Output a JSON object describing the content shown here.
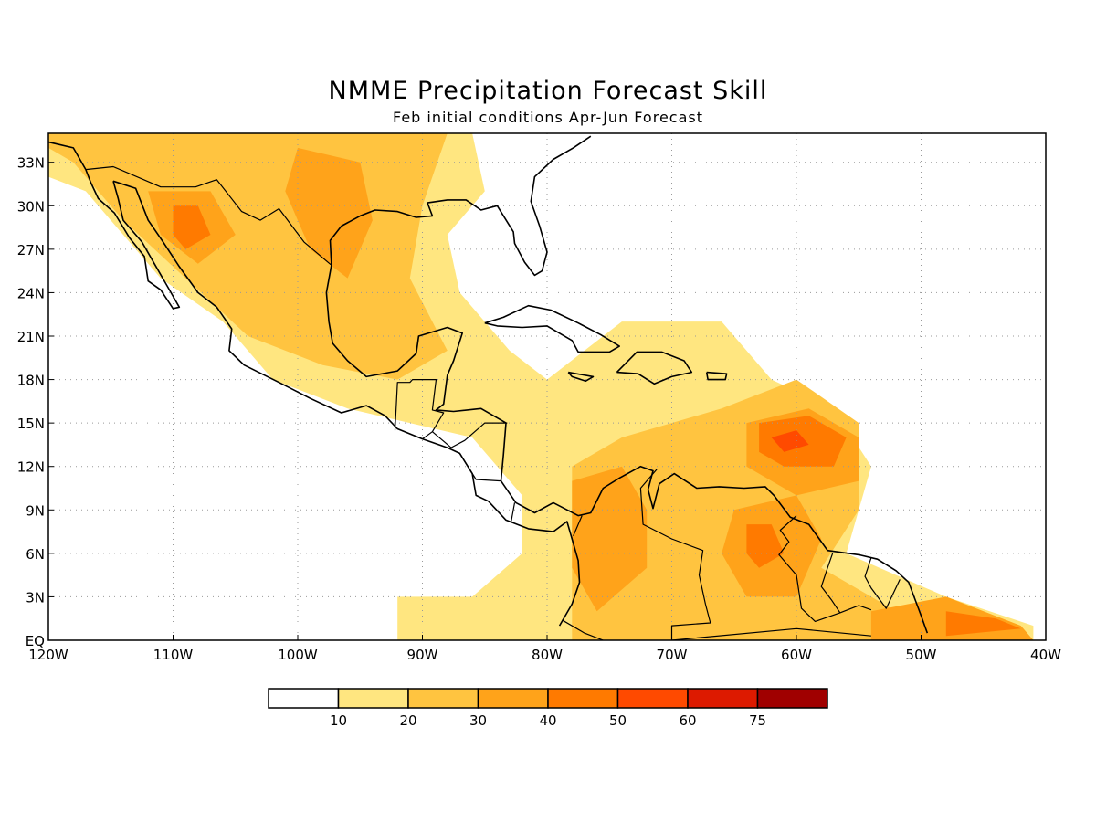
{
  "title": "NMME Precipitation Forecast Skill",
  "subtitle": "Feb initial conditions  Apr-Jun Forecast",
  "map": {
    "lon_range": [
      -120,
      -40
    ],
    "lat_range": [
      0,
      35
    ],
    "lon_ticks": [
      {
        "value": -120,
        "label": "120W"
      },
      {
        "value": -110,
        "label": "110W"
      },
      {
        "value": -100,
        "label": "100W"
      },
      {
        "value": -90,
        "label": "90W"
      },
      {
        "value": -80,
        "label": "80W"
      },
      {
        "value": -70,
        "label": "70W"
      },
      {
        "value": -60,
        "label": "60W"
      },
      {
        "value": -50,
        "label": "50W"
      },
      {
        "value": -40,
        "label": "40W"
      }
    ],
    "lat_ticks": [
      {
        "value": 0,
        "label": "EQ"
      },
      {
        "value": 3,
        "label": "3N"
      },
      {
        "value": 6,
        "label": "6N"
      },
      {
        "value": 9,
        "label": "9N"
      },
      {
        "value": 12,
        "label": "12N"
      },
      {
        "value": 15,
        "label": "15N"
      },
      {
        "value": 18,
        "label": "18N"
      },
      {
        "value": 21,
        "label": "21N"
      },
      {
        "value": 24,
        "label": "24N"
      },
      {
        "value": 27,
        "label": "27N"
      },
      {
        "value": 30,
        "label": "30N"
      },
      {
        "value": 33,
        "label": "33N"
      }
    ],
    "grid": "dotted"
  },
  "legend": {
    "labels": [
      "10",
      "20",
      "30",
      "40",
      "50",
      "60",
      "75"
    ],
    "colors": [
      "#ffffff",
      "#ffe680",
      "#ffc440",
      "#ffa31a",
      "#ff7a00",
      "#ff4a00",
      "#dd1a00",
      "#a00000"
    ]
  },
  "skill_regions": [
    {
      "level": 1,
      "pts": [
        [
          -120,
          35
        ],
        [
          -86,
          35
        ],
        [
          -85,
          31
        ],
        [
          -88,
          28
        ],
        [
          -87,
          24
        ],
        [
          -83,
          20
        ],
        [
          -80,
          18
        ],
        [
          -74,
          22
        ],
        [
          -66,
          22
        ],
        [
          -62,
          18
        ],
        [
          -57,
          16
        ],
        [
          -54,
          12
        ],
        [
          -56,
          6
        ],
        [
          -48,
          3
        ],
        [
          -41,
          1
        ],
        [
          -41,
          0
        ],
        [
          -92,
          0
        ],
        [
          -92,
          3
        ],
        [
          -86,
          3
        ],
        [
          -82,
          6
        ],
        [
          -82,
          10
        ],
        [
          -86,
          14
        ],
        [
          -96,
          16
        ],
        [
          -102,
          18
        ],
        [
          -106,
          22
        ],
        [
          -111,
          25
        ],
        [
          -114,
          28
        ],
        [
          -117,
          31
        ],
        [
          -120,
          32
        ]
      ]
    },
    {
      "level": 2,
      "pts": [
        [
          -120,
          35
        ],
        [
          -88,
          35
        ],
        [
          -90,
          30
        ],
        [
          -91,
          25
        ],
        [
          -88,
          20
        ],
        [
          -92,
          18
        ],
        [
          -98,
          19
        ],
        [
          -104,
          21
        ],
        [
          -109,
          25
        ],
        [
          -114,
          29
        ],
        [
          -118,
          33
        ],
        [
          -120,
          34
        ]
      ]
    },
    {
      "level": 2,
      "pts": [
        [
          -78,
          12
        ],
        [
          -74,
          14
        ],
        [
          -66,
          16
        ],
        [
          -60,
          18
        ],
        [
          -55,
          15
        ],
        [
          -55,
          9
        ],
        [
          -58,
          5
        ],
        [
          -52,
          2
        ],
        [
          -48,
          3
        ],
        [
          -42,
          1
        ],
        [
          -41,
          0
        ],
        [
          -78,
          0
        ]
      ]
    },
    {
      "level": 3,
      "pts": [
        [
          -112,
          31
        ],
        [
          -107,
          31
        ],
        [
          -105,
          28
        ],
        [
          -108,
          26
        ],
        [
          -111,
          28
        ]
      ]
    },
    {
      "level": 3,
      "pts": [
        [
          -100,
          34
        ],
        [
          -95,
          33
        ],
        [
          -94,
          29
        ],
        [
          -96,
          25
        ],
        [
          -99,
          27
        ],
        [
          -101,
          31
        ]
      ]
    },
    {
      "level": 3,
      "pts": [
        [
          -78,
          11
        ],
        [
          -74,
          12
        ],
        [
          -72,
          9
        ],
        [
          -72,
          5
        ],
        [
          -76,
          2
        ],
        [
          -78,
          5
        ]
      ]
    },
    {
      "level": 3,
      "pts": [
        [
          -65,
          9
        ],
        [
          -60,
          10
        ],
        [
          -58,
          7
        ],
        [
          -60,
          3
        ],
        [
          -64,
          3
        ],
        [
          -66,
          6
        ]
      ]
    },
    {
      "level": 3,
      "pts": [
        [
          -64,
          15
        ],
        [
          -59,
          16
        ],
        [
          -55,
          14
        ],
        [
          -55,
          11
        ],
        [
          -60,
          10
        ],
        [
          -64,
          12
        ]
      ]
    },
    {
      "level": 3,
      "pts": [
        [
          -54,
          2
        ],
        [
          -48,
          3
        ],
        [
          -42,
          1
        ],
        [
          -41,
          0
        ],
        [
          -54,
          0
        ]
      ]
    },
    {
      "level": 4,
      "pts": [
        [
          -110,
          30
        ],
        [
          -108,
          30
        ],
        [
          -107,
          28
        ],
        [
          -109,
          27
        ],
        [
          -110,
          28
        ]
      ]
    },
    {
      "level": 4,
      "pts": [
        [
          -63,
          15
        ],
        [
          -59,
          15.5
        ],
        [
          -56,
          14
        ],
        [
          -57,
          12
        ],
        [
          -61,
          12
        ],
        [
          -63,
          13
        ]
      ]
    },
    {
      "level": 4,
      "pts": [
        [
          -64,
          8
        ],
        [
          -62,
          8
        ],
        [
          -61,
          6
        ],
        [
          -63,
          5
        ],
        [
          -64,
          6
        ]
      ]
    },
    {
      "level": 4,
      "pts": [
        [
          -48,
          2
        ],
        [
          -44,
          1.5
        ],
        [
          -42,
          0.8
        ],
        [
          -48,
          0.3
        ]
      ]
    },
    {
      "level": 5,
      "pts": [
        [
          -62,
          14
        ],
        [
          -60,
          14.5
        ],
        [
          -59,
          13.5
        ],
        [
          -61,
          13
        ]
      ]
    }
  ],
  "coastlines": [
    [
      [
        -117,
        32.5
      ],
      [
        -118,
        34
      ],
      [
        -120.5,
        34.5
      ]
    ],
    [
      [
        -114.8,
        31.7
      ],
      [
        -113,
        31.2
      ],
      [
        -112,
        29
      ],
      [
        -110.8,
        27.5
      ],
      [
        -109.5,
        25.8
      ],
      [
        -108,
        24
      ],
      [
        -106.5,
        23
      ],
      [
        -105.3,
        21.5
      ],
      [
        -105.5,
        20
      ],
      [
        -104.3,
        19
      ],
      [
        -101.5,
        17.8
      ],
      [
        -99,
        16.7
      ],
      [
        -96.5,
        15.7
      ],
      [
        -94.5,
        16.2
      ],
      [
        -93,
        15.5
      ],
      [
        -92,
        14.6
      ],
      [
        -90,
        13.9
      ],
      [
        -88,
        13.3
      ],
      [
        -87,
        12.9
      ],
      [
        -86,
        11.5
      ],
      [
        -85.7,
        10
      ],
      [
        -84.7,
        9.6
      ],
      [
        -83.3,
        8.3
      ],
      [
        -81.5,
        7.7
      ],
      [
        -79.5,
        7.5
      ],
      [
        -78.4,
        8.2
      ],
      [
        -78,
        7
      ],
      [
        -77.5,
        5.5
      ],
      [
        -77.4,
        4
      ],
      [
        -78,
        2.5
      ],
      [
        -79,
        1
      ]
    ],
    [
      [
        -114.8,
        31.7
      ],
      [
        -114.4,
        30.5
      ],
      [
        -114,
        29
      ],
      [
        -112.5,
        27.5
      ],
      [
        -111.5,
        26
      ],
      [
        -110.5,
        24.5
      ],
      [
        -109.5,
        23
      ],
      [
        -110,
        22.9
      ],
      [
        -111,
        24.2
      ],
      [
        -112,
        24.8
      ],
      [
        -112.3,
        26.5
      ],
      [
        -113.5,
        27.8
      ],
      [
        -114.7,
        29.5
      ],
      [
        -116,
        30.5
      ],
      [
        -116.6,
        31.6
      ],
      [
        -117,
        32.5
      ]
    ],
    [
      [
        -97.3,
        25.9
      ],
      [
        -97.7,
        24
      ],
      [
        -97.5,
        22
      ],
      [
        -97.2,
        20.5
      ],
      [
        -96,
        19.3
      ],
      [
        -94.5,
        18.2
      ],
      [
        -92,
        18.6
      ],
      [
        -90.5,
        19.8
      ],
      [
        -90.3,
        21
      ],
      [
        -88,
        21.6
      ],
      [
        -86.8,
        21.2
      ],
      [
        -87.5,
        19.3
      ],
      [
        -88,
        18.3
      ],
      [
        -88.3,
        16.3
      ],
      [
        -88.9,
        15.9
      ],
      [
        -87.5,
        15.8
      ],
      [
        -85.3,
        16
      ],
      [
        -83.3,
        15
      ],
      [
        -83.5,
        12.8
      ],
      [
        -83.7,
        11
      ],
      [
        -82.5,
        9.5
      ],
      [
        -81,
        8.8
      ],
      [
        -79.5,
        9.5
      ],
      [
        -77.5,
        8.6
      ],
      [
        -76.5,
        8.8
      ],
      [
        -75.5,
        10.5
      ],
      [
        -74.2,
        11.2
      ],
      [
        -72.5,
        12
      ],
      [
        -71.5,
        11.7
      ],
      [
        -71.9,
        10.4
      ],
      [
        -71.5,
        9.1
      ],
      [
        -71,
        10.8
      ],
      [
        -69.8,
        11.5
      ],
      [
        -68,
        10.5
      ],
      [
        -66.2,
        10.6
      ],
      [
        -64.2,
        10.5
      ],
      [
        -62.5,
        10.6
      ],
      [
        -61.8,
        10
      ],
      [
        -60.5,
        8.5
      ],
      [
        -59,
        8
      ],
      [
        -57.5,
        6.2
      ],
      [
        -55,
        5.9
      ],
      [
        -53.5,
        5.6
      ],
      [
        -52,
        4.8
      ],
      [
        -51,
        4
      ],
      [
        -50,
        1.7
      ],
      [
        -49.5,
        0.5
      ]
    ],
    [
      [
        -97.3,
        25.9
      ],
      [
        -97.4,
        27.6
      ],
      [
        -96.5,
        28.6
      ],
      [
        -95,
        29.3
      ],
      [
        -93.8,
        29.7
      ],
      [
        -92,
        29.6
      ],
      [
        -90.5,
        29.2
      ],
      [
        -89.2,
        29.3
      ],
      [
        -89.6,
        30.2
      ],
      [
        -88,
        30.4
      ],
      [
        -86.5,
        30.4
      ],
      [
        -85.3,
        29.7
      ],
      [
        -84,
        30
      ],
      [
        -82.7,
        28.2
      ],
      [
        -82.6,
        27.4
      ],
      [
        -81.8,
        26.1
      ],
      [
        -81,
        25.2
      ],
      [
        -80.4,
        25.5
      ],
      [
        -80,
        26.8
      ],
      [
        -80.6,
        28.6
      ],
      [
        -81.3,
        30.3
      ],
      [
        -81,
        32
      ],
      [
        -79.5,
        33.2
      ],
      [
        -77.9,
        34
      ],
      [
        -76.5,
        34.8
      ]
    ],
    [
      [
        -85,
        21.9
      ],
      [
        -83.5,
        22.3
      ],
      [
        -81.5,
        23.1
      ],
      [
        -79.7,
        22.8
      ],
      [
        -77.5,
        21.9
      ],
      [
        -75.7,
        21.1
      ],
      [
        -74.2,
        20.3
      ],
      [
        -75,
        19.9
      ],
      [
        -77.5,
        19.9
      ],
      [
        -78,
        20.7
      ],
      [
        -80,
        21.7
      ],
      [
        -82,
        21.6
      ],
      [
        -84,
        21.7
      ],
      [
        -85,
        21.9
      ]
    ],
    [
      [
        -78.3,
        18.5
      ],
      [
        -76.3,
        18.2
      ],
      [
        -76.9,
        17.9
      ],
      [
        -78,
        18.2
      ],
      [
        -78.3,
        18.5
      ]
    ],
    [
      [
        -74.4,
        18.5
      ],
      [
        -72.8,
        19.9
      ],
      [
        -70.8,
        19.9
      ],
      [
        -69,
        19.3
      ],
      [
        -68.4,
        18.5
      ],
      [
        -70,
        18.2
      ],
      [
        -71.4,
        17.7
      ],
      [
        -72.7,
        18.4
      ],
      [
        -74.4,
        18.5
      ]
    ],
    [
      [
        -67.2,
        18.5
      ],
      [
        -65.6,
        18.4
      ],
      [
        -65.7,
        18
      ],
      [
        -67.1,
        18
      ],
      [
        -67.2,
        18.5
      ]
    ]
  ],
  "borders": [
    [
      [
        -117,
        32.5
      ],
      [
        -114.8,
        32.7
      ],
      [
        -111,
        31.3
      ],
      [
        -108.2,
        31.3
      ],
      [
        -106.5,
        31.8
      ],
      [
        -104.5,
        29.6
      ],
      [
        -103,
        29
      ],
      [
        -101.5,
        29.8
      ],
      [
        -99.5,
        27.5
      ],
      [
        -97.3,
        25.9
      ]
    ],
    [
      [
        -92.2,
        14.5
      ],
      [
        -92,
        17.8
      ],
      [
        -91,
        17.8
      ],
      [
        -90.8,
        18
      ],
      [
        -88.9,
        18
      ],
      [
        -89.2,
        15.9
      ],
      [
        -88.3,
        15.7
      ],
      [
        -89.2,
        14.4
      ],
      [
        -90,
        13.9
      ]
    ],
    [
      [
        -89.2,
        14.4
      ],
      [
        -87.7,
        13.3
      ],
      [
        -86.6,
        13.8
      ],
      [
        -85,
        15
      ],
      [
        -83.2,
        15
      ]
    ],
    [
      [
        -87,
        12.9
      ],
      [
        -85.7,
        11.1
      ],
      [
        -83.7,
        11
      ]
    ],
    [
      [
        -82.9,
        8.1
      ],
      [
        -82.6,
        9.5
      ]
    ],
    [
      [
        -77.9,
        7.2
      ],
      [
        -77.2,
        8.6
      ]
    ],
    [
      [
        -71.2,
        11.8
      ],
      [
        -72.5,
        10.5
      ],
      [
        -72.3,
        8
      ],
      [
        -70,
        7
      ],
      [
        -67.5,
        6.2
      ],
      [
        -67.8,
        4.5
      ],
      [
        -67.3,
        2.5
      ],
      [
        -66.9,
        1.2
      ],
      [
        -70,
        1
      ],
      [
        -70,
        0
      ]
    ],
    [
      [
        -78.8,
        1.4
      ],
      [
        -77,
        0.5
      ],
      [
        -75.5,
        0
      ]
    ],
    [
      [
        -60,
        8.6
      ],
      [
        -61.3,
        7.6
      ],
      [
        -60.6,
        6.8
      ],
      [
        -61.4,
        5.9
      ],
      [
        -60.7,
        5.2
      ],
      [
        -60,
        4.5
      ],
      [
        -59.6,
        2.2
      ],
      [
        -58.5,
        1.3
      ],
      [
        -56.5,
        1.9
      ]
    ],
    [
      [
        -57.1,
        6
      ],
      [
        -57.5,
        5
      ],
      [
        -58,
        3.7
      ],
      [
        -57.2,
        2.8
      ],
      [
        -56.5,
        1.9
      ],
      [
        -55,
        2.4
      ],
      [
        -54,
        2.1
      ]
    ],
    [
      [
        -54,
        5.7
      ],
      [
        -54.5,
        4.4
      ],
      [
        -54,
        3.6
      ],
      [
        -52.8,
        2.2
      ],
      [
        -51.7,
        4.2
      ]
    ],
    [
      [
        -70,
        0
      ],
      [
        -60,
        0.8
      ],
      [
        -54,
        0.3
      ]
    ]
  ]
}
